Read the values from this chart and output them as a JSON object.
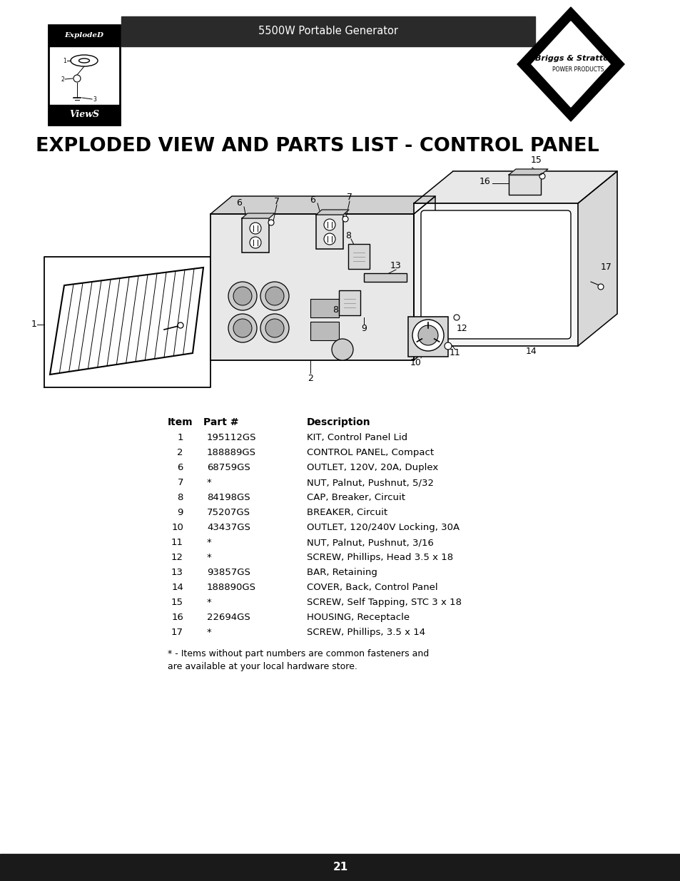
{
  "header_text": "5500W Portable Generator",
  "title": "EXPLODED VIEW AND PARTS LIST - CONTROL PANEL",
  "page_number": "21",
  "header_bg": "#2a2a2a",
  "header_text_color": "#ffffff",
  "bg_color": "#ffffff",
  "footer_bg": "#1a1a1a",
  "footer_text_color": "#ffffff",
  "parts": [
    {
      "item": "1",
      "part": "195112GS",
      "desc": "KIT, Control Panel Lid"
    },
    {
      "item": "2",
      "part": "188889GS",
      "desc": "CONTROL PANEL, Compact"
    },
    {
      "item": "6",
      "part": "68759GS",
      "desc": "OUTLET, 120V, 20A, Duplex"
    },
    {
      "item": "7",
      "part": "*",
      "desc": "NUT, Palnut, Pushnut, 5/32"
    },
    {
      "item": "8",
      "part": "84198GS",
      "desc": "CAP, Breaker, Circuit"
    },
    {
      "item": "9",
      "part": "75207GS",
      "desc": "BREAKER, Circuit"
    },
    {
      "item": "10",
      "part": "43437GS",
      "desc": "OUTLET, 120/240V Locking, 30A"
    },
    {
      "item": "11",
      "part": "*",
      "desc": "NUT, Palnut, Pushnut, 3/16"
    },
    {
      "item": "12",
      "part": "*",
      "desc": "SCREW, Phillips, Head 3.5 x 18"
    },
    {
      "item": "13",
      "part": "93857GS",
      "desc": "BAR, Retaining"
    },
    {
      "item": "14",
      "part": "188890GS",
      "desc": "COVER, Back, Control Panel"
    },
    {
      "item": "15",
      "part": "*",
      "desc": "SCREW, Self Tapping, STC 3 x 18"
    },
    {
      "item": "16",
      "part": "22694GS",
      "desc": "HOUSING, Receptacle"
    },
    {
      "item": "17",
      "part": "*",
      "desc": "SCREW, Phillips, 3.5 x 14"
    }
  ],
  "footnote": "* - Items without part numbers are common fasteners and\nare available at your local hardware store."
}
